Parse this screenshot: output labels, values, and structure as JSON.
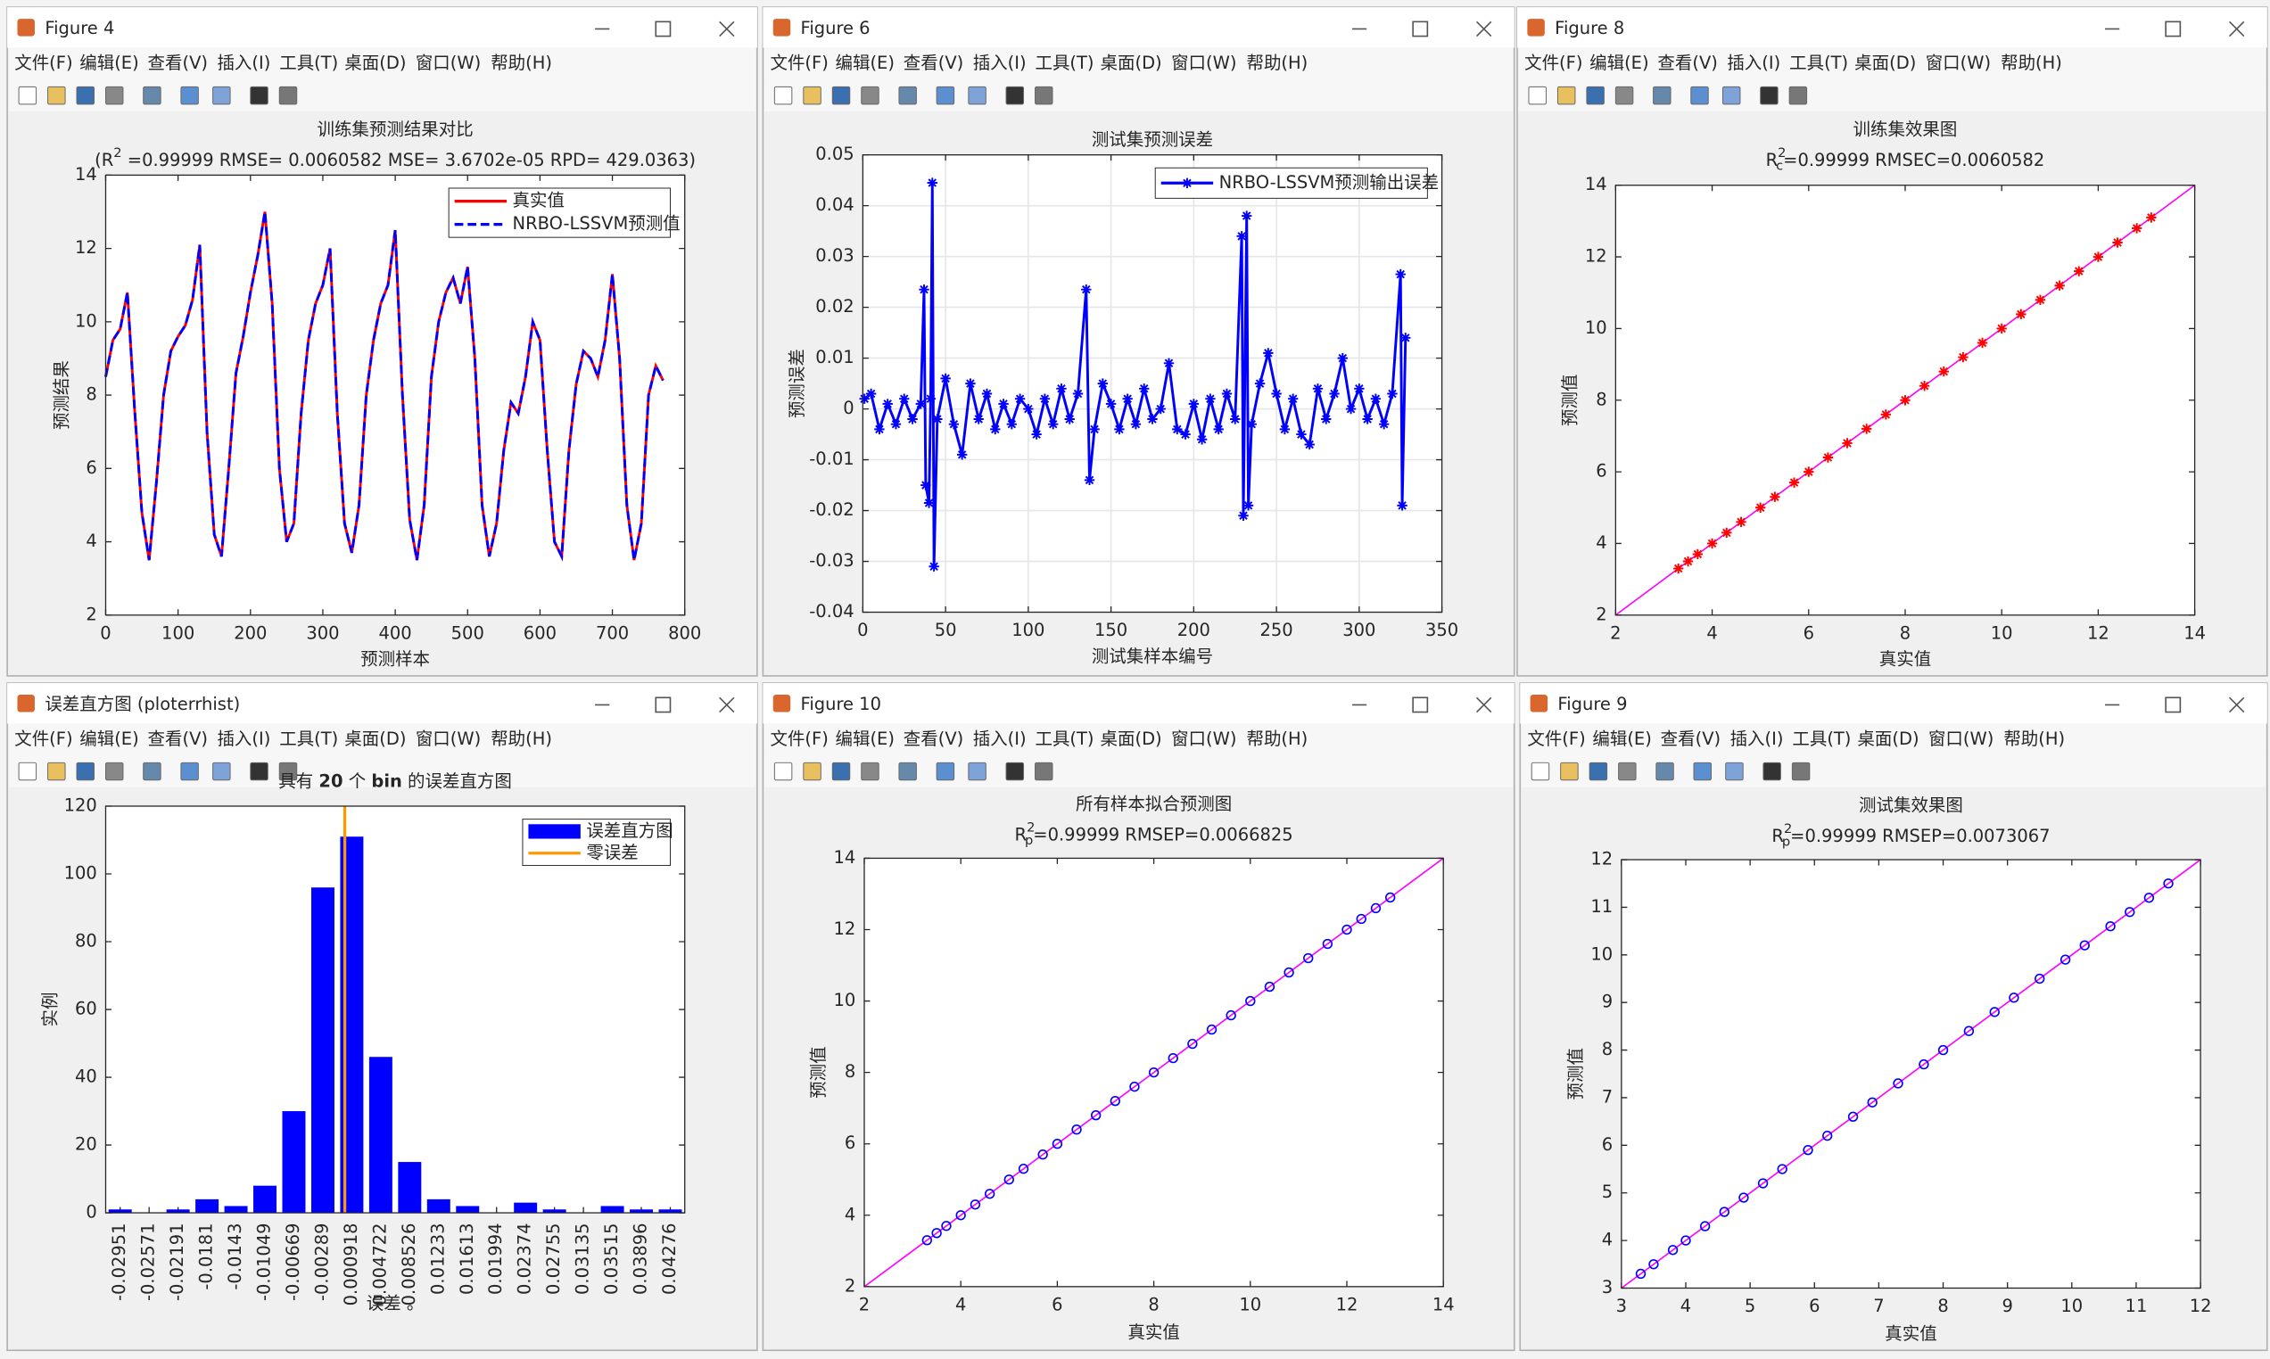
{
  "menu": [
    "文件(F)",
    "编辑(E)",
    "查看(V)",
    "插入(I)",
    "工具(T)",
    "桌面(D)",
    "窗口(W)",
    "帮助(H)"
  ],
  "windows": [
    {
      "title": "Figure 4"
    },
    {
      "title": "Figure 6"
    },
    {
      "title": "Figure 8"
    },
    {
      "title": "误差直方图 (ploterrhist)"
    },
    {
      "title": "Figure 10"
    },
    {
      "title": "Figure 9"
    }
  ],
  "chart_data": [
    {
      "type": "line",
      "title": "训练集预测结果对比",
      "subtitle": [
        "(R",
        "2",
        " =0.99999 RMSE= 0.0060582 MSE= 3.6702e-05 RPD= 429.0363)"
      ],
      "subtitle_style": [
        "normal",
        "sup",
        "normal"
      ],
      "xlabel": "预测样本",
      "ylabel": "预测结果",
      "x": [
        0,
        10,
        20,
        30,
        40,
        50,
        60,
        70,
        80,
        90,
        100,
        110,
        120,
        130,
        140,
        150,
        160,
        170,
        180,
        190,
        200,
        210,
        220,
        230,
        240,
        250,
        260,
        270,
        280,
        290,
        300,
        310,
        320,
        330,
        340,
        350,
        360,
        370,
        380,
        390,
        400,
        410,
        420,
        430,
        440,
        450,
        460,
        470,
        480,
        490,
        500,
        510,
        520,
        530,
        540,
        550,
        560,
        570,
        580,
        590,
        600,
        610,
        620,
        630,
        640,
        650,
        660,
        670,
        680,
        690,
        700,
        710,
        720,
        730,
        740,
        750,
        760,
        770
      ],
      "series": [
        {
          "name": "真实值",
          "color": "#ff0000",
          "line_style": "solid",
          "values": [
            8.5,
            9.5,
            9.8,
            10.8,
            7.6,
            4.8,
            3.5,
            5.6,
            8.0,
            9.2,
            9.6,
            9.9,
            10.6,
            12.1,
            7.0,
            4.2,
            3.6,
            6.0,
            8.6,
            9.6,
            10.8,
            11.8,
            13.0,
            10.5,
            6.0,
            4.0,
            4.5,
            7.5,
            9.5,
            10.5,
            11.0,
            12.0,
            7.5,
            4.5,
            3.7,
            5.0,
            8.0,
            9.5,
            10.5,
            11.0,
            12.5,
            8.0,
            4.6,
            3.5,
            5.0,
            8.5,
            10.0,
            10.8,
            11.2,
            10.5,
            11.5,
            9.0,
            5.0,
            3.6,
            4.5,
            6.5,
            7.8,
            7.5,
            8.5,
            10.0,
            9.5,
            6.5,
            4.0,
            3.6,
            6.5,
            8.3,
            9.2,
            9.0,
            8.5,
            9.5,
            11.3,
            9.0,
            5.0,
            3.5,
            4.5,
            8.0,
            8.8,
            8.4
          ]
        },
        {
          "name": "NRBO-LSSVM预测值",
          "color": "#0000ff",
          "line_style": "dashed",
          "values": [
            8.5,
            9.5,
            9.8,
            10.8,
            7.6,
            4.8,
            3.5,
            5.6,
            8.0,
            9.2,
            9.6,
            9.9,
            10.6,
            12.1,
            7.0,
            4.2,
            3.6,
            6.0,
            8.6,
            9.6,
            10.8,
            11.8,
            13.0,
            10.5,
            6.0,
            4.0,
            4.5,
            7.5,
            9.5,
            10.5,
            11.0,
            12.0,
            7.5,
            4.5,
            3.7,
            5.0,
            8.0,
            9.5,
            10.5,
            11.0,
            12.5,
            8.0,
            4.6,
            3.5,
            5.0,
            8.5,
            10.0,
            10.8,
            11.2,
            10.5,
            11.5,
            9.0,
            5.0,
            3.6,
            4.5,
            6.5,
            7.8,
            7.5,
            8.5,
            10.0,
            9.5,
            6.5,
            4.0,
            3.6,
            6.5,
            8.3,
            9.2,
            9.0,
            8.5,
            9.5,
            11.3,
            9.0,
            5.0,
            3.5,
            4.5,
            8.0,
            8.8,
            8.4
          ]
        }
      ],
      "xlim": [
        0,
        800
      ],
      "ylim": [
        2,
        14
      ],
      "xticks": [
        0,
        100,
        200,
        300,
        400,
        500,
        600,
        700,
        800
      ],
      "yticks": [
        2,
        4,
        6,
        8,
        10,
        12,
        14
      ],
      "grid": false,
      "legend": "upper right"
    },
    {
      "type": "line",
      "title": "测试集预测误差",
      "xlabel": "测试集样本编号",
      "ylabel": "预测误差",
      "x": [
        1,
        5,
        10,
        15,
        20,
        25,
        30,
        35,
        37,
        38,
        40,
        41,
        42,
        43,
        45,
        50,
        55,
        60,
        65,
        70,
        75,
        80,
        85,
        90,
        95,
        100,
        105,
        110,
        115,
        120,
        125,
        130,
        135,
        137,
        140,
        145,
        150,
        155,
        160,
        165,
        170,
        175,
        180,
        185,
        190,
        195,
        200,
        205,
        210,
        215,
        220,
        225,
        229,
        230,
        232,
        233,
        235,
        240,
        245,
        250,
        255,
        260,
        265,
        270,
        275,
        280,
        285,
        290,
        295,
        300,
        305,
        310,
        315,
        320,
        325,
        326,
        328
      ],
      "series": [
        {
          "name": "NRBO-LSSVM预测输出误差",
          "color": "#0000ff",
          "line_style": "solid",
          "marker": "*",
          "values": [
            0.002,
            0.003,
            -0.004,
            0.001,
            -0.003,
            0.002,
            -0.002,
            0.001,
            0.0235,
            -0.015,
            -0.0185,
            0.002,
            0.0445,
            -0.031,
            -0.002,
            0.006,
            -0.003,
            -0.009,
            0.005,
            -0.002,
            0.003,
            -0.004,
            0.001,
            -0.003,
            0.002,
            0,
            -0.005,
            0.002,
            -0.003,
            0.004,
            -0.002,
            0.003,
            0.0235,
            -0.014,
            -0.004,
            0.005,
            0.001,
            -0.004,
            0.002,
            -0.003,
            0.004,
            -0.002,
            0,
            0.009,
            -0.004,
            -0.005,
            0.001,
            -0.006,
            0.002,
            -0.004,
            0.003,
            -0.002,
            0.034,
            -0.021,
            0.038,
            -0.019,
            -0.003,
            0.005,
            0.011,
            0.003,
            -0.004,
            0.002,
            -0.005,
            -0.007,
            0.004,
            -0.002,
            0.003,
            0.01,
            0,
            0.004,
            -0.002,
            0.002,
            -0.003,
            0.003,
            0.0265,
            -0.019,
            0.014
          ]
        }
      ],
      "xlim": [
        0,
        350
      ],
      "ylim": [
        -0.04,
        0.05
      ],
      "xticks": [
        0,
        50,
        100,
        150,
        200,
        250,
        300,
        350
      ],
      "yticks": [
        -0.04,
        -0.03,
        -0.02,
        -0.01,
        0,
        0.01,
        0.02,
        0.03,
        0.04,
        0.05
      ],
      "grid": true,
      "legend": "upper right"
    },
    {
      "type": "scatter",
      "title": "训练集效果图",
      "subtitle": [
        "R",
        "2",
        "c",
        "=0.99999  RMSEC=0.0060582"
      ],
      "subtitle_style": [
        "normal",
        "sup",
        "sub",
        "normal"
      ],
      "xlabel": "真实值",
      "ylabel": "预测值",
      "series": [
        {
          "color": "#ff00ff",
          "mode": "line",
          "x": [
            2,
            14
          ],
          "values": [
            2,
            14
          ]
        },
        {
          "color": "#ff0000",
          "mode": "markers",
          "marker": "*",
          "x": [
            3.3,
            3.5,
            3.7,
            4.0,
            4.3,
            4.6,
            5.0,
            5.3,
            5.7,
            6.0,
            6.4,
            6.8,
            7.2,
            7.6,
            8.0,
            8.4,
            8.8,
            9.2,
            9.6,
            10.0,
            10.4,
            10.8,
            11.2,
            11.6,
            12.0,
            12.4,
            12.8,
            13.1
          ],
          "values": [
            3.3,
            3.5,
            3.7,
            4.0,
            4.3,
            4.6,
            5.0,
            5.3,
            5.7,
            6.0,
            6.4,
            6.8,
            7.2,
            7.6,
            8.0,
            8.4,
            8.8,
            9.2,
            9.6,
            10.0,
            10.4,
            10.8,
            11.2,
            11.6,
            12.0,
            12.4,
            12.8,
            13.1
          ]
        }
      ],
      "xlim": [
        2,
        14
      ],
      "ylim": [
        2,
        14
      ],
      "xticks": [
        2,
        4,
        6,
        8,
        10,
        12,
        14
      ],
      "yticks": [
        2,
        4,
        6,
        8,
        10,
        12,
        14
      ],
      "grid": false
    },
    {
      "type": "bar",
      "title": [
        "具有 ",
        "20",
        " 个 ",
        "bin",
        " 的误差直方图"
      ],
      "title_style": [
        "normal",
        "bold",
        "normal",
        "bold",
        "normal"
      ],
      "xlabel": "误差 。",
      "ylabel": "实例",
      "categories": [
        "-0.02951",
        "-0.02571",
        "-0.02191",
        "-0.0181",
        "-0.0143",
        "-0.01049",
        "-0.00669",
        "-0.00289",
        "0.000918",
        "0.004722",
        "0.008526",
        "0.01233",
        "0.01613",
        "0.01994",
        "0.02374",
        "0.02755",
        "0.03135",
        "0.03515",
        "0.03896",
        "0.04276"
      ],
      "series": [
        {
          "name": "误差直方图",
          "color": "#0000ff",
          "values": [
            1,
            0,
            1,
            4,
            2,
            8,
            30,
            96,
            111,
            46,
            15,
            4,
            2,
            0,
            3,
            1,
            0,
            2,
            1,
            1
          ]
        }
      ],
      "reference_line": {
        "name": "零误差",
        "color": "#ff9900",
        "value": 0
      },
      "ylim": [
        0,
        120
      ],
      "yticks": [
        0,
        20,
        40,
        60,
        80,
        100,
        120
      ],
      "grid": false,
      "legend": "upper right"
    },
    {
      "type": "scatter",
      "title": "所有样本拟合预测图",
      "subtitle": [
        "R",
        "2",
        "p",
        "=0.99999  RMSEP=0.0066825"
      ],
      "subtitle_style": [
        "normal",
        "sup",
        "sub",
        "normal"
      ],
      "xlabel": "真实值",
      "ylabel": "预测值",
      "series": [
        {
          "color": "#ff00ff",
          "mode": "line",
          "x": [
            2,
            14
          ],
          "values": [
            2,
            14
          ]
        },
        {
          "color": "#0000ff",
          "mode": "markers",
          "marker": "o",
          "x": [
            3.3,
            3.5,
            3.7,
            4.0,
            4.3,
            4.6,
            5.0,
            5.3,
            5.7,
            6.0,
            6.4,
            6.8,
            7.2,
            7.6,
            8.0,
            8.4,
            8.8,
            9.2,
            9.6,
            10.0,
            10.4,
            10.8,
            11.2,
            11.6,
            12.0,
            12.3,
            12.6,
            12.9
          ],
          "values": [
            3.3,
            3.5,
            3.7,
            4.0,
            4.3,
            4.6,
            5.0,
            5.3,
            5.7,
            6.0,
            6.4,
            6.8,
            7.2,
            7.6,
            8.0,
            8.4,
            8.8,
            9.2,
            9.6,
            10.0,
            10.4,
            10.8,
            11.2,
            11.6,
            12.0,
            12.3,
            12.6,
            12.9
          ]
        }
      ],
      "xlim": [
        2,
        14
      ],
      "ylim": [
        2,
        14
      ],
      "xticks": [
        2,
        4,
        6,
        8,
        10,
        12,
        14
      ],
      "yticks": [
        2,
        4,
        6,
        8,
        10,
        12,
        14
      ],
      "grid": false
    },
    {
      "type": "scatter",
      "title": "测试集效果图",
      "subtitle": [
        "R",
        "2",
        "p",
        "=0.99999  RMSEP=0.0073067"
      ],
      "subtitle_style": [
        "normal",
        "sup",
        "sub",
        "normal"
      ],
      "xlabel": "真实值",
      "ylabel": "预测值",
      "series": [
        {
          "color": "#ff00ff",
          "mode": "line",
          "x": [
            3,
            12
          ],
          "values": [
            3,
            12
          ]
        },
        {
          "color": "#0000ff",
          "mode": "markers",
          "marker": "o",
          "x": [
            3.3,
            3.5,
            3.8,
            4.0,
            4.3,
            4.6,
            4.9,
            5.2,
            5.5,
            5.9,
            6.2,
            6.6,
            6.9,
            7.3,
            7.7,
            8.0,
            8.4,
            8.8,
            9.1,
            9.5,
            9.9,
            10.2,
            10.6,
            10.9,
            11.2,
            11.5
          ],
          "values": [
            3.3,
            3.5,
            3.8,
            4.0,
            4.3,
            4.6,
            4.9,
            5.2,
            5.5,
            5.9,
            6.2,
            6.6,
            6.9,
            7.3,
            7.7,
            8.0,
            8.4,
            8.8,
            9.1,
            9.5,
            9.9,
            10.2,
            10.6,
            10.9,
            11.2,
            11.5
          ]
        }
      ],
      "xlim": [
        3,
        12
      ],
      "ylim": [
        3,
        12
      ],
      "xticks": [
        3,
        4,
        5,
        6,
        7,
        8,
        9,
        10,
        11,
        12
      ],
      "yticks": [
        3,
        4,
        5,
        6,
        7,
        8,
        9,
        10,
        11,
        12
      ],
      "grid": false
    }
  ]
}
